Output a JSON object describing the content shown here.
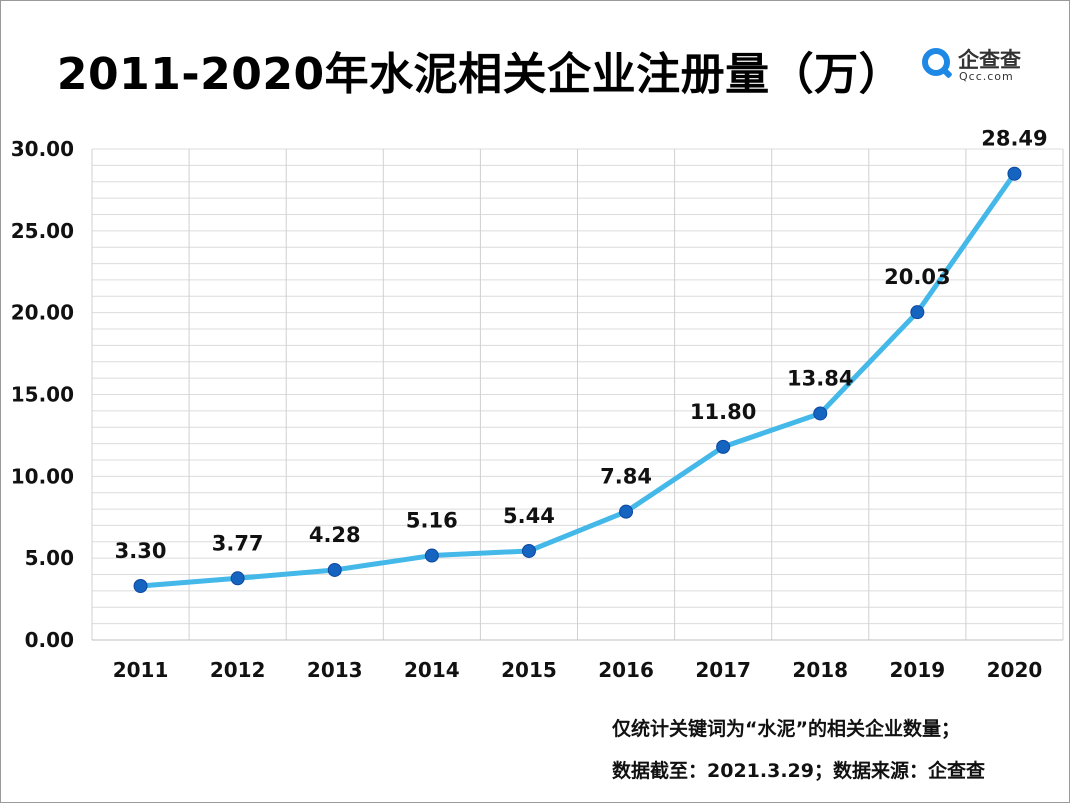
{
  "title": "2011-2020年水泥相关企业注册量（万）",
  "logo": {
    "name": "企查查",
    "sub": "Qcc.com",
    "icon": "qcc-logo-icon",
    "color": "#1e88e5"
  },
  "chart_data": {
    "type": "line",
    "categories": [
      "2011",
      "2012",
      "2013",
      "2014",
      "2015",
      "2016",
      "2017",
      "2018",
      "2019",
      "2020"
    ],
    "values": [
      3.3,
      3.77,
      4.28,
      5.16,
      5.44,
      7.84,
      11.8,
      13.84,
      20.03,
      28.49
    ],
    "data_labels": [
      "3.30",
      "3.77",
      "4.28",
      "5.16",
      "5.44",
      "7.84",
      "11.80",
      "13.84",
      "20.03",
      "28.49"
    ],
    "ylim": [
      0,
      30
    ],
    "yticks": [
      "0.00",
      "5.00",
      "10.00",
      "15.00",
      "20.00",
      "25.00",
      "30.00"
    ],
    "grid": true,
    "line_color": "#44b8e8",
    "marker_color": "#1565c0"
  },
  "footnotes": {
    "line1": "仅统计关键词为“水泥”的相关企业数量；",
    "line2": "数据截至：2021.3.29；数据来源：企查查"
  }
}
